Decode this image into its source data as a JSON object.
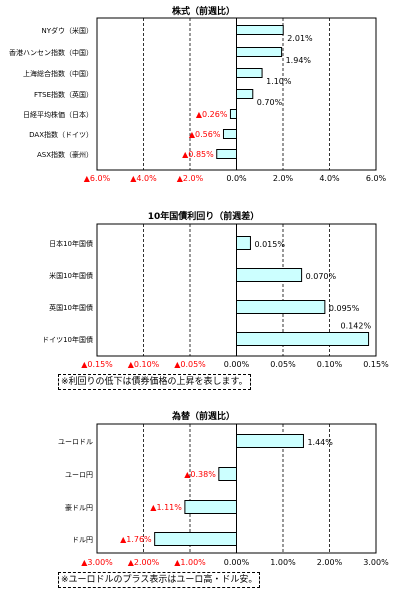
{
  "chart_data": [
    {
      "type": "bar",
      "orientation": "horizontal",
      "title": "株式（前週比）",
      "categories": [
        "NYダウ（米国）",
        "香港ハンセン指数（中国）",
        "上海総合指数（中国）",
        "FTSE指数（英国）",
        "日経平均株価（日本）",
        "DAX指数（ドイツ）",
        "ASX指数（豪州）"
      ],
      "values": [
        2.01,
        1.94,
        1.1,
        0.7,
        -0.26,
        -0.56,
        -0.85
      ],
      "value_labels": [
        "2.01%",
        "1.94%",
        "1.10%",
        "0.70%",
        "▲0.26%",
        "▲0.56%",
        "▲0.85%"
      ],
      "xlim": [
        -6,
        6
      ],
      "ticks": [
        -6,
        -4,
        -2,
        0,
        2,
        4,
        6
      ],
      "tick_labels": [
        "▲6.0%",
        "▲4.0%",
        "▲2.0%",
        "0.0%",
        "2.0%",
        "4.0%",
        "6.0%"
      ],
      "bar_fill": "#ccffff",
      "negative_color": "#ff0000",
      "grid": "dashed-vertical"
    },
    {
      "type": "bar",
      "orientation": "horizontal",
      "title": "10年国債利回り（前週差）",
      "categories": [
        "日本10年国債",
        "米国10年国債",
        "英国10年国債",
        "ドイツ10年国債"
      ],
      "values": [
        0.015,
        0.07,
        0.095,
        0.142
      ],
      "value_labels": [
        "0.015%",
        "0.070%",
        "0.095%",
        "0.142%"
      ],
      "xlim": [
        -0.15,
        0.15
      ],
      "ticks": [
        -0.15,
        -0.1,
        -0.05,
        0,
        0.05,
        0.1,
        0.15
      ],
      "tick_labels": [
        "▲0.15%",
        "▲0.10%",
        "▲0.05%",
        "0.00%",
        "0.05%",
        "0.10%",
        "0.15%"
      ],
      "bar_fill": "#ccffff",
      "negative_color": "#ff0000",
      "grid": "dashed-vertical"
    },
    {
      "type": "bar",
      "orientation": "horizontal",
      "title": "為替（前週比）",
      "categories": [
        "ユーロドル",
        "ユーロ円",
        "豪ドル円",
        "ドル円"
      ],
      "values": [
        1.44,
        -0.38,
        -1.11,
        -1.76
      ],
      "value_labels": [
        "1.44%",
        "▲0.38%",
        "▲1.11%",
        "▲1.76%"
      ],
      "xlim": [
        -3,
        3
      ],
      "ticks": [
        -3,
        -2,
        -1,
        0,
        1,
        2,
        3
      ],
      "tick_labels": [
        "▲3.00%",
        "▲2.00%",
        "▲1.00%",
        "0.00%",
        "1.00%",
        "2.00%",
        "3.00%"
      ],
      "bar_fill": "#ccffff",
      "negative_color": "#ff0000",
      "grid": "dashed-vertical"
    }
  ],
  "notes": {
    "bond": "※利回りの低下は債券価格の上昇を表します。",
    "fx": "※ユーロドルのプラス表示はユーロ高・ドル安。"
  }
}
